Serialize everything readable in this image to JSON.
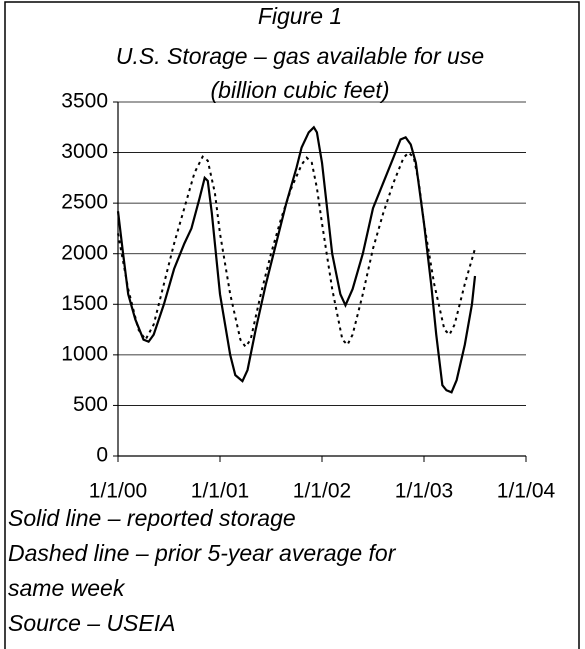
{
  "chart_data": {
    "type": "line",
    "title": [
      "Figure 1",
      "U.S. Storage – gas available for use",
      "(billion cubic feet)"
    ],
    "notes": [
      "Solid line – reported storage",
      "Dashed line – prior 5-year average for",
      "same week",
      "Source – USEIA"
    ],
    "xlim": [
      2000,
      2004
    ],
    "xticks": [
      {
        "value": 2000,
        "label": "1/1/00"
      },
      {
        "value": 2001,
        "label": "1/1/01"
      },
      {
        "value": 2002,
        "label": "1/1/02"
      },
      {
        "value": 2003,
        "label": "1/1/03"
      },
      {
        "value": 2004,
        "label": "1/1/04"
      }
    ],
    "ylim": [
      0,
      3500
    ],
    "yticks": [
      0,
      500,
      1000,
      1500,
      2000,
      2500,
      3000,
      3500
    ],
    "grid": true,
    "series": [
      {
        "color": "#000000",
        "dashed": false,
        "x": [
          2000.0,
          2000.05,
          2000.1,
          2000.17,
          2000.25,
          2000.3,
          2000.35,
          2000.45,
          2000.55,
          2000.65,
          2000.72,
          2000.8,
          2000.85,
          2000.88,
          2000.92,
          2000.97,
          2001.0,
          2001.05,
          2001.1,
          2001.15,
          2001.22,
          2001.27,
          2001.35,
          2001.45,
          2001.55,
          2001.65,
          2001.75,
          2001.8,
          2001.87,
          2001.92,
          2001.95,
          2002.0,
          2002.05,
          2002.1,
          2002.18,
          2002.23,
          2002.3,
          2002.4,
          2002.5,
          2002.6,
          2002.7,
          2002.77,
          2002.82,
          2002.87,
          2002.92,
          2003.0,
          2003.07,
          2003.12,
          2003.18,
          2003.22,
          2003.27,
          2003.32,
          2003.4,
          2003.47,
          2003.5
        ],
        "values": [
          2420,
          2000,
          1600,
          1350,
          1150,
          1130,
          1200,
          1500,
          1850,
          2100,
          2250,
          2550,
          2750,
          2720,
          2400,
          1900,
          1600,
          1300,
          1000,
          800,
          740,
          850,
          1250,
          1700,
          2100,
          2500,
          2850,
          3050,
          3200,
          3250,
          3200,
          2900,
          2450,
          2000,
          1600,
          1490,
          1650,
          2000,
          2450,
          2700,
          2950,
          3130,
          3150,
          3080,
          2900,
          2300,
          1700,
          1200,
          700,
          650,
          630,
          750,
          1100,
          1500,
          1780
        ]
      },
      {
        "color": "#000000",
        "dashed": true,
        "x": [
          2000.0,
          2000.1,
          2000.2,
          2000.27,
          2000.35,
          2000.45,
          2000.55,
          2000.65,
          2000.75,
          2000.83,
          2000.88,
          2000.95,
          2001.0,
          2001.1,
          2001.2,
          2001.25,
          2001.3,
          2001.4,
          2001.5,
          2001.6,
          2001.7,
          2001.8,
          2001.85,
          2001.9,
          2001.95,
          2002.0,
          2002.1,
          2002.2,
          2002.25,
          2002.3,
          2002.4,
          2002.5,
          2002.6,
          2002.7,
          2002.8,
          2002.85,
          2002.9,
          2002.95,
          2003.0,
          2003.1,
          2003.2,
          2003.25,
          2003.3,
          2003.4,
          2003.5
        ],
        "values": [
          2200,
          1650,
          1250,
          1150,
          1300,
          1700,
          2100,
          2450,
          2800,
          2960,
          2920,
          2600,
          2200,
          1600,
          1150,
          1080,
          1150,
          1600,
          2000,
          2350,
          2650,
          2880,
          2950,
          2900,
          2650,
          2300,
          1650,
          1150,
          1100,
          1200,
          1600,
          2050,
          2400,
          2700,
          2950,
          3000,
          2950,
          2700,
          2300,
          1700,
          1250,
          1200,
          1300,
          1700,
          2050
        ]
      }
    ]
  }
}
